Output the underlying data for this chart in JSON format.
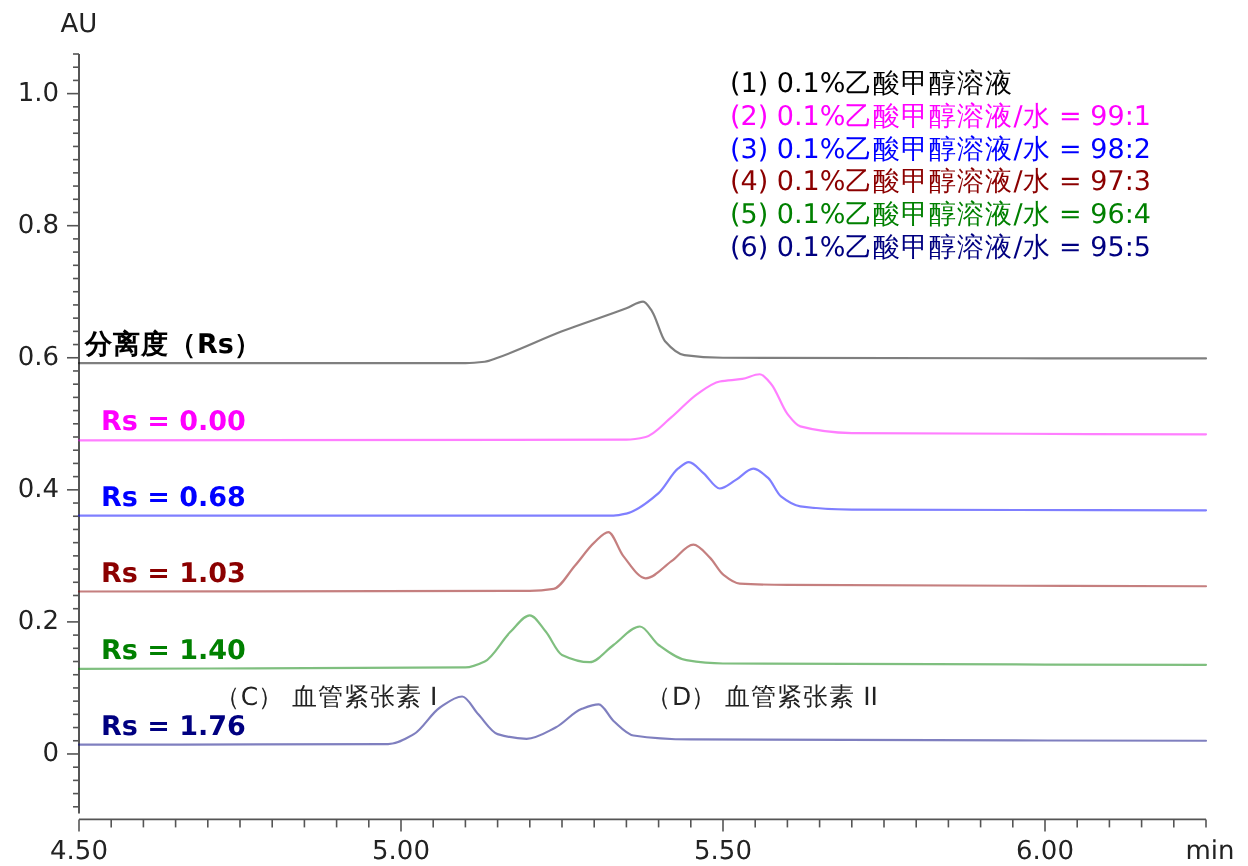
{
  "chart_data": {
    "type": "line",
    "xlabel": "min",
    "ylabel": "AU",
    "xlim": [
      4.5,
      6.25
    ],
    "ylim": [
      -0.09,
      1.06
    ],
    "xticks": [
      {
        "value": 4.5,
        "label": "4.50"
      },
      {
        "value": 4.55,
        "label": null
      },
      {
        "value": 4.6,
        "label": null
      },
      {
        "value": 4.65,
        "label": null
      },
      {
        "value": 4.7,
        "label": null
      },
      {
        "value": 4.75,
        "label": null
      },
      {
        "value": 4.8,
        "label": null
      },
      {
        "value": 4.85,
        "label": null
      },
      {
        "value": 4.9,
        "label": null
      },
      {
        "value": 4.95,
        "label": null
      },
      {
        "value": 5,
        "label": "5.00"
      },
      {
        "value": 5.05,
        "label": null
      },
      {
        "value": 5.1,
        "label": null
      },
      {
        "value": 5.15,
        "label": null
      },
      {
        "value": 5.2,
        "label": null
      },
      {
        "value": 5.25,
        "label": null
      },
      {
        "value": 5.3,
        "label": null
      },
      {
        "value": 5.35,
        "label": null
      },
      {
        "value": 5.4,
        "label": null
      },
      {
        "value": 5.45,
        "label": null
      },
      {
        "value": 5.5,
        "label": "5.50"
      },
      {
        "value": 5.55,
        "label": null
      },
      {
        "value": 5.6,
        "label": null
      },
      {
        "value": 5.65,
        "label": null
      },
      {
        "value": 5.7,
        "label": null
      },
      {
        "value": 5.75,
        "label": null
      },
      {
        "value": 5.8,
        "label": null
      },
      {
        "value": 5.85,
        "label": null
      },
      {
        "value": 5.9,
        "label": null
      },
      {
        "value": 5.95,
        "label": null
      },
      {
        "value": 6,
        "label": "6.00"
      },
      {
        "value": 6.05,
        "label": null
      },
      {
        "value": 6.1,
        "label": null
      },
      {
        "value": 6.15,
        "label": null
      },
      {
        "value": 6.2,
        "label": null
      },
      {
        "value": 6.25,
        "label": null
      }
    ],
    "yticks": [
      {
        "value": -0.08,
        "label": null
      },
      {
        "value": -0.06,
        "label": null
      },
      {
        "value": -0.04,
        "label": null
      },
      {
        "value": -0.02,
        "label": null
      },
      0,
      {
        "value": 0.02,
        "label": null
      },
      {
        "value": 0.04,
        "label": null
      },
      {
        "value": 0.06,
        "label": null
      },
      {
        "value": 0.08,
        "label": null
      },
      {
        "value": 0.1,
        "label": null
      },
      {
        "value": 0.12,
        "label": null
      },
      {
        "value": 0.14,
        "label": null
      },
      {
        "value": 0.16,
        "label": null
      },
      {
        "value": 0.18,
        "label": null
      },
      0.2,
      {
        "value": 0.22,
        "label": null
      },
      {
        "value": 0.24,
        "label": null
      },
      {
        "value": 0.26,
        "label": null
      },
      {
        "value": 0.28,
        "label": null
      },
      {
        "value": 0.3,
        "label": null
      },
      {
        "value": 0.32,
        "label": null
      },
      {
        "value": 0.34,
        "label": null
      },
      {
        "value": 0.36,
        "label": null
      },
      {
        "value": 0.38,
        "label": null
      },
      0.4,
      {
        "value": 0.42,
        "label": null
      },
      {
        "value": 0.44,
        "label": null
      },
      {
        "value": 0.46,
        "label": null
      },
      {
        "value": 0.48,
        "label": null
      },
      {
        "value": 0.5,
        "label": null
      },
      {
        "value": 0.52,
        "label": null
      },
      {
        "value": 0.54,
        "label": null
      },
      {
        "value": 0.56,
        "label": null
      },
      {
        "value": 0.58,
        "label": null
      },
      0.6,
      {
        "value": 0.62,
        "label": null
      },
      {
        "value": 0.64,
        "label": null
      },
      {
        "value": 0.66,
        "label": null
      },
      {
        "value": 0.68,
        "label": null
      },
      {
        "value": 0.7,
        "label": null
      },
      {
        "value": 0.72,
        "label": null
      },
      {
        "value": 0.74,
        "label": null
      },
      {
        "value": 0.76,
        "label": null
      },
      {
        "value": 0.78,
        "label": null
      },
      0.8,
      {
        "value": 0.82,
        "label": null
      },
      {
        "value": 0.84,
        "label": null
      },
      {
        "value": 0.86,
        "label": null
      },
      {
        "value": 0.88,
        "label": null
      },
      {
        "value": 0.9,
        "label": null
      },
      {
        "value": 0.92,
        "label": null
      },
      {
        "value": 0.94,
        "label": null
      },
      {
        "value": 0.96,
        "label": null
      },
      {
        "value": 0.98,
        "label": null
      },
      {
        "value": 1.0,
        "label": "1.0"
      },
      {
        "value": 1.02,
        "label": null
      },
      {
        "value": 1.04,
        "label": null
      },
      {
        "value": 1.06,
        "label": null
      }
    ],
    "grid": false,
    "legend": "top right",
    "marker": "none",
    "line_style": "solid",
    "series": [
      {
        "name": "(1) 0.1%乙酸甲醇溶液",
        "color": "#000000",
        "x": [
          4.5,
          5.1,
          5.13,
          5.15,
          5.25,
          5.35,
          5.376,
          5.39,
          5.41,
          5.44,
          5.5,
          6.25
        ],
        "values": [
          0.592,
          0.592,
          0.594,
          0.6,
          0.64,
          0.675,
          0.685,
          0.67,
          0.625,
          0.604,
          0.6,
          0.599
        ]
      },
      {
        "name": "(2) 0.1%乙酸甲醇溶液/水 = 99:1",
        "color": "#ff00ff",
        "x": [
          4.5,
          5.35,
          5.38,
          5.42,
          5.46,
          5.495,
          5.53,
          5.557,
          5.575,
          5.6,
          5.62,
          5.7,
          6.25
        ],
        "values": [
          0.475,
          0.476,
          0.48,
          0.51,
          0.545,
          0.564,
          0.568,
          0.575,
          0.56,
          0.515,
          0.496,
          0.486,
          0.484
        ]
      },
      {
        "name": "(3) 0.1%乙酸甲醇溶液/水 = 98:2",
        "color": "#0000ff",
        "x": [
          4.5,
          5.33,
          5.35,
          5.4,
          5.43,
          5.447,
          5.47,
          5.495,
          5.52,
          5.547,
          5.57,
          5.59,
          5.62,
          5.7,
          6.25
        ],
        "values": [
          0.361,
          0.361,
          0.364,
          0.395,
          0.432,
          0.442,
          0.425,
          0.402,
          0.415,
          0.432,
          0.418,
          0.39,
          0.375,
          0.37,
          0.369
        ]
      },
      {
        "name": "(4) 0.1%乙酸甲醇溶液/水 = 97:3",
        "color": "#8b0000",
        "x": [
          4.5,
          5.2,
          5.237,
          5.27,
          5.3,
          5.322,
          5.345,
          5.38,
          5.42,
          5.454,
          5.48,
          5.5,
          5.526,
          5.6,
          6.25
        ],
        "values": [
          0.246,
          0.247,
          0.25,
          0.285,
          0.32,
          0.336,
          0.3,
          0.266,
          0.292,
          0.317,
          0.297,
          0.272,
          0.258,
          0.256,
          0.254
        ]
      },
      {
        "name": "(5) 0.1%乙酸甲醇溶液/水 = 96:4",
        "color": "#008000",
        "x": [
          4.5,
          5.1,
          5.13,
          5.17,
          5.2,
          5.225,
          5.25,
          5.293,
          5.33,
          5.371,
          5.4,
          5.443,
          5.5,
          6.25
        ],
        "values": [
          0.129,
          0.131,
          0.14,
          0.185,
          0.21,
          0.185,
          0.15,
          0.139,
          0.165,
          0.193,
          0.165,
          0.142,
          0.137,
          0.135
        ]
      },
      {
        "name": "(6) 0.1%乙酸甲醇溶液/水 = 95:5",
        "color": "#000080",
        "x": [
          4.5,
          4.98,
          5.02,
          5.06,
          5.095,
          5.12,
          5.15,
          5.195,
          5.24,
          5.28,
          5.307,
          5.33,
          5.361,
          5.45,
          6.25
        ],
        "values": [
          0.014,
          0.015,
          0.03,
          0.07,
          0.087,
          0.06,
          0.03,
          0.023,
          0.04,
          0.068,
          0.075,
          0.05,
          0.028,
          0.022,
          0.02
        ]
      }
    ],
    "annotations": [
      "分离度（Rs）",
      "Rs = 0.00",
      "Rs = 0.68",
      "Rs = 1.03",
      "Rs = 1.40",
      "Rs = 1.76",
      "（C） 血管紧张素 I",
      "（D） 血管紧张素 II"
    ]
  }
}
